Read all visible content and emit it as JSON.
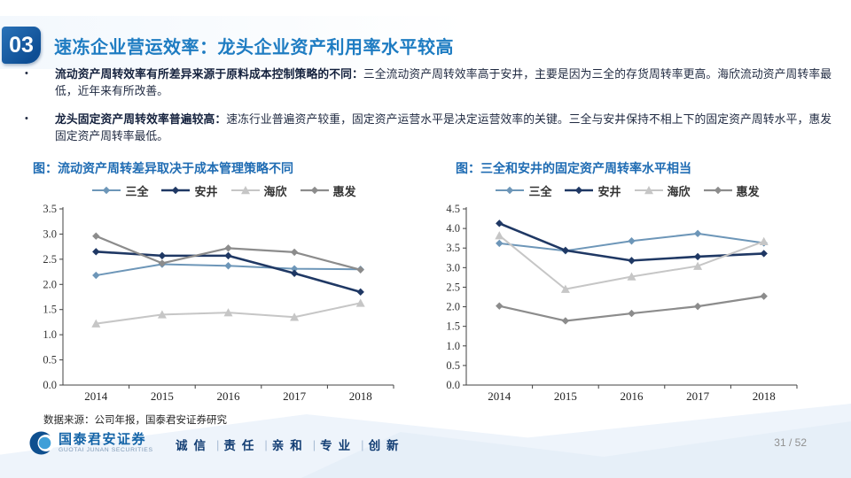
{
  "slide": {
    "badge": "03",
    "title": "速冻企业营运效率：龙头企业资产利用率水平较高",
    "page_number": "31 / 52",
    "bullet_glyph": "•"
  },
  "bullets": [
    {
      "lead": "流动资产周转效率有所差异来源于原料成本控制策略的不同：",
      "text": "三全流动资产周转效率高于安井，主要是因为三全的存货周转率更高。海欣流动资产周转率最低，近年来有所改善。"
    },
    {
      "lead": "龙头固定资产周转效率普遍较高：",
      "text": "速冻行业普遍资产较重，固定资产运营水平是决定运营效率的关键。三全与安井保持不相上下的固定资产周转水平，惠发固定资产周转率最低。"
    }
  ],
  "footer": {
    "source": "数据来源：公司年报，国泰君安证券研究",
    "logo_cn": "国泰君安证券",
    "logo_en": "GUOTAI JUNAN SECURITIES",
    "tagline": [
      "诚信",
      "责任",
      "亲和",
      "专业",
      "创新"
    ],
    "tagline_separator": "|"
  },
  "colors": {
    "title_blue": "#1e7cc2",
    "chart_title_blue": "#1f6cb3",
    "badge_blue": "#0e4e94",
    "axis_gray": "#404040",
    "logo_blue": "#1565a8"
  },
  "chart_data": [
    {
      "type": "line",
      "title": "图：流动资产周转差异取决于成本管理策略不同",
      "categories": [
        "2014",
        "2015",
        "2016",
        "2017",
        "2018"
      ],
      "ylim": [
        0.0,
        3.5
      ],
      "ytick_step": 0.5,
      "grid": false,
      "legend_position": "top",
      "series": [
        {
          "name": "三全",
          "color": "#6d96b8",
          "marker": "diamond",
          "line_width": 2.0,
          "values": [
            2.18,
            2.4,
            2.37,
            2.31,
            2.3
          ]
        },
        {
          "name": "安井",
          "color": "#1f3864",
          "marker": "diamond",
          "line_width": 2.6,
          "values": [
            2.65,
            2.57,
            2.57,
            2.22,
            1.85
          ]
        },
        {
          "name": "海欣",
          "color": "#c6c6c6",
          "marker": "triangle",
          "line_width": 2.0,
          "values": [
            1.22,
            1.4,
            1.44,
            1.35,
            1.63
          ]
        },
        {
          "name": "惠发",
          "color": "#8c8c8c",
          "marker": "diamond",
          "line_width": 2.2,
          "values": [
            2.96,
            2.42,
            2.72,
            2.64,
            2.29
          ]
        }
      ]
    },
    {
      "type": "line",
      "title": "图：三全和安井的固定资产周转率水平相当",
      "categories": [
        "2014",
        "2015",
        "2016",
        "2017",
        "2018"
      ],
      "ylim": [
        0.0,
        4.5
      ],
      "ytick_step": 0.5,
      "grid": false,
      "legend_position": "top",
      "series": [
        {
          "name": "三全",
          "color": "#6d96b8",
          "marker": "diamond",
          "line_width": 2.0,
          "values": [
            3.62,
            3.43,
            3.68,
            3.87,
            3.63
          ]
        },
        {
          "name": "安井",
          "color": "#1f3864",
          "marker": "diamond",
          "line_width": 2.6,
          "values": [
            4.13,
            3.44,
            3.18,
            3.28,
            3.36
          ]
        },
        {
          "name": "海欣",
          "color": "#c6c6c6",
          "marker": "triangle",
          "line_width": 2.0,
          "values": [
            3.82,
            2.45,
            2.77,
            3.04,
            3.67
          ]
        },
        {
          "name": "惠发",
          "color": "#8c8c8c",
          "marker": "diamond",
          "line_width": 2.2,
          "values": [
            2.02,
            1.64,
            1.83,
            2.01,
            2.27
          ]
        }
      ]
    }
  ]
}
